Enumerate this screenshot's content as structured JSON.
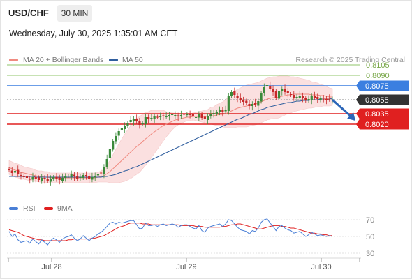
{
  "header": {
    "symbol": "USD/CHF",
    "timeframe": "30 MIN",
    "datetime": "Wednesday, July 30, 2025 1:35:01 AM CET"
  },
  "legend": {
    "ma20_label": "MA 20 + Bollinger Bands",
    "ma50_label": "MA 50",
    "credit": "Research © 2025 Trading Central",
    "rsi_label": "RSI",
    "rsi_ma_label": "9MA"
  },
  "colors": {
    "ma20": "#f08a80",
    "ma50": "#2f5e9e",
    "band_fill": "#fbe0e0",
    "bull": "#3b8a3b",
    "bear": "#c62828",
    "support": "#e02020",
    "resistance_light": "#8fc46a",
    "resistance_blue": "#3b7fe0",
    "arrow": "#2c66b8",
    "current_badge": "#333333",
    "rsi": "#4a7fd6",
    "rsi_ma": "#e02020"
  },
  "chart_data": [
    {
      "type": "candlestick",
      "title": "USD/CHF",
      "x_labels": [
        "Jul 28",
        "Jul 29",
        "Jul 30"
      ],
      "ylim": [
        0.7905,
        0.8115
      ],
      "levels": [
        {
          "value": 0.8105,
          "label": "0.8105",
          "kind": "resistance"
        },
        {
          "value": 0.809,
          "label": "0.8090",
          "kind": "resistance"
        },
        {
          "value": 0.8075,
          "label": "0.8075",
          "kind": "pivot"
        },
        {
          "value": 0.8055,
          "label": "0.8055",
          "kind": "current"
        },
        {
          "value": 0.8035,
          "label": "0.8035",
          "kind": "support"
        },
        {
          "value": 0.802,
          "label": "0.8020",
          "kind": "support"
        }
      ],
      "forecast_arrow": {
        "from": 0.8055,
        "to": 0.8025
      },
      "closes": [
        0.7954,
        0.795,
        0.7953,
        0.7948,
        0.7946,
        0.7944,
        0.7943,
        0.7941,
        0.7944,
        0.7942,
        0.794,
        0.7943,
        0.7941,
        0.7939,
        0.7942,
        0.7944,
        0.7942,
        0.794,
        0.7943,
        0.7945,
        0.7946,
        0.7948,
        0.7945,
        0.7942,
        0.7944,
        0.7947,
        0.7945,
        0.7942,
        0.7944,
        0.7946,
        0.7949,
        0.795,
        0.7959,
        0.797,
        0.7985,
        0.7996,
        0.8003,
        0.801,
        0.8014,
        0.8018,
        0.8022,
        0.8026,
        0.8028,
        0.8024,
        0.8019,
        0.8021,
        0.803,
        0.8027,
        0.8029,
        0.8031,
        0.803,
        0.8031,
        0.8032,
        0.8031,
        0.8033,
        0.8034,
        0.8033,
        0.8031,
        0.8033,
        0.8034,
        0.8034,
        0.8033,
        0.8031,
        0.803,
        0.8034,
        0.8029,
        0.8027,
        0.8032,
        0.8034,
        0.8036,
        0.8038,
        0.804,
        0.8037,
        0.804,
        0.806,
        0.8066,
        0.8062,
        0.8058,
        0.8054,
        0.8052,
        0.805,
        0.8046,
        0.8049,
        0.8048,
        0.8053,
        0.8064,
        0.8073,
        0.8076,
        0.8071,
        0.8066,
        0.8058,
        0.8068,
        0.807,
        0.8066,
        0.8064,
        0.8062,
        0.8058,
        0.8059,
        0.8061,
        0.8057,
        0.8054,
        0.8056,
        0.806,
        0.8058,
        0.8056,
        0.8057,
        0.8056,
        0.8055,
        0.8056,
        0.8055
      ],
      "series": [
        {
          "name": "MA 20",
          "values": [
            0.7958,
            0.7956,
            0.7954,
            0.7953,
            0.7951,
            0.795,
            0.7949,
            0.7948,
            0.7947,
            0.7946,
            0.7945,
            0.7945,
            0.7944,
            0.7944,
            0.7943,
            0.7943,
            0.7943,
            0.7943,
            0.7943,
            0.7943,
            0.7943,
            0.7943,
            0.7943,
            0.7943,
            0.7943,
            0.7943,
            0.7943,
            0.7943,
            0.7943,
            0.7943,
            0.7944,
            0.7945,
            0.7946,
            0.7949,
            0.7952,
            0.7956,
            0.796,
            0.7964,
            0.7968,
            0.7972,
            0.7976,
            0.798,
            0.7984,
            0.7988,
            0.7991,
            0.7995,
            0.7999,
            0.8002,
            0.8006,
            0.8009,
            0.8012,
            0.8015,
            0.8018,
            0.802,
            0.8022,
            0.8024,
            0.8026,
            0.8027,
            0.8028,
            0.8029,
            0.803,
            0.803,
            0.8031,
            0.8031,
            0.8031,
            0.8031,
            0.8031,
            0.8031,
            0.8032,
            0.8032,
            0.8033,
            0.8034,
            0.8034,
            0.8035,
            0.8037,
            0.8039,
            0.8041,
            0.8043,
            0.8044,
            0.8045,
            0.8046,
            0.8047,
            0.8048,
            0.8049,
            0.805,
            0.8052,
            0.8054,
            0.8056,
            0.8057,
            0.8058,
            0.8058,
            0.8059,
            0.806,
            0.8061,
            0.8062,
            0.8062,
            0.8063,
            0.8063,
            0.8063,
            0.8063,
            0.8063,
            0.8063,
            0.8062,
            0.8062,
            0.8062,
            0.8061,
            0.8061,
            0.806,
            0.8059,
            0.8059
          ]
        },
        {
          "name": "MA 50",
          "values": [
            0.7945,
            0.7945,
            0.7945,
            0.7945,
            0.7945,
            0.7945,
            0.7945,
            0.7945,
            0.7945,
            0.7944,
            0.7944,
            0.7944,
            0.7944,
            0.7944,
            0.7944,
            0.7944,
            0.7944,
            0.7944,
            0.7944,
            0.7944,
            0.7944,
            0.7944,
            0.7944,
            0.7944,
            0.7944,
            0.7944,
            0.7944,
            0.7944,
            0.7944,
            0.7944,
            0.7944,
            0.7944,
            0.7945,
            0.7945,
            0.7946,
            0.7947,
            0.7948,
            0.795,
            0.7951,
            0.7953,
            0.7954,
            0.7956,
            0.7958,
            0.7959,
            0.7961,
            0.7963,
            0.7965,
            0.7967,
            0.7969,
            0.7971,
            0.7973,
            0.7975,
            0.7977,
            0.7979,
            0.7981,
            0.7983,
            0.7985,
            0.7987,
            0.7989,
            0.7991,
            0.7993,
            0.7995,
            0.7997,
            0.7999,
            0.8001,
            0.8003,
            0.8005,
            0.8007,
            0.8009,
            0.8011,
            0.8013,
            0.8015,
            0.8017,
            0.8019,
            0.8021,
            0.8023,
            0.8025,
            0.8027,
            0.8028,
            0.803,
            0.8032,
            0.8034,
            0.8035,
            0.8037,
            0.8039,
            0.8041,
            0.8042,
            0.8044,
            0.8045,
            0.8046,
            0.8047,
            0.8048,
            0.8049,
            0.805,
            0.8051,
            0.8051,
            0.8052,
            0.8053,
            0.8053,
            0.8054,
            0.8054,
            0.8054,
            0.8055,
            0.8055,
            0.8055,
            0.8056,
            0.8056,
            0.8056,
            0.8056,
            0.8057
          ]
        }
      ],
      "bollinger_width": [
        0.001,
        0.001,
        0.001,
        0.001,
        0.001,
        0.0009,
        0.0009,
        0.0009,
        0.0009,
        0.0008,
        0.0008,
        0.0008,
        0.0008,
        0.0008,
        0.0007,
        0.0007,
        0.0007,
        0.0007,
        0.0007,
        0.0007,
        0.0007,
        0.0007,
        0.0007,
        0.0007,
        0.0007,
        0.0007,
        0.0007,
        0.0007,
        0.0007,
        0.0007,
        0.0007,
        0.0008,
        0.0009,
        0.0012,
        0.0016,
        0.002,
        0.0024,
        0.0028,
        0.0031,
        0.0034,
        0.0036,
        0.0038,
        0.0039,
        0.004,
        0.004,
        0.0039,
        0.0038,
        0.0036,
        0.0034,
        0.0031,
        0.0028,
        0.0025,
        0.0022,
        0.0018,
        0.0015,
        0.0012,
        0.001,
        0.0008,
        0.0007,
        0.0006,
        0.0005,
        0.0005,
        0.0005,
        0.0006,
        0.0007,
        0.0008,
        0.0009,
        0.001,
        0.0012,
        0.0013,
        0.0015,
        0.0016,
        0.0018,
        0.002,
        0.0022,
        0.0024,
        0.0026,
        0.0027,
        0.0028,
        0.0029,
        0.003,
        0.003,
        0.003,
        0.003,
        0.003,
        0.003,
        0.003,
        0.003,
        0.003,
        0.003,
        0.003,
        0.003,
        0.0029,
        0.0028,
        0.0027,
        0.0026,
        0.0025,
        0.0024,
        0.0023,
        0.0022,
        0.0021,
        0.002,
        0.0019,
        0.0018,
        0.0017,
        0.0016,
        0.0015,
        0.0014,
        0.0013,
        0.0012
      ]
    },
    {
      "type": "line",
      "title": "RSI",
      "ylim": [
        20,
        80
      ],
      "yticks": [
        70,
        50,
        30
      ],
      "series": [
        {
          "name": "RSI",
          "values": [
            56,
            50,
            53,
            46,
            43,
            44,
            45,
            42,
            47,
            44,
            41,
            46,
            43,
            40,
            45,
            48,
            46,
            43,
            47,
            49,
            50,
            52,
            48,
            45,
            47,
            51,
            48,
            45,
            48,
            50,
            53,
            55,
            58,
            62,
            66,
            67,
            65,
            67,
            66,
            67,
            68,
            69,
            69,
            64,
            59,
            60,
            66,
            63,
            63,
            64,
            62,
            64,
            65,
            63,
            64,
            65,
            64,
            61,
            63,
            64,
            64,
            62,
            60,
            59,
            63,
            57,
            55,
            60,
            62,
            63,
            64,
            65,
            62,
            65,
            70,
            69,
            65,
            61,
            58,
            57,
            56,
            53,
            57,
            56,
            60,
            67,
            70,
            71,
            66,
            62,
            57,
            62,
            63,
            60,
            58,
            57,
            54,
            55,
            56,
            53,
            50,
            52,
            55,
            53,
            51,
            52,
            51,
            50,
            51,
            50
          ]
        },
        {
          "name": "9MA",
          "values": [
            58,
            57,
            56,
            55,
            53,
            51,
            50,
            49,
            48,
            47,
            46,
            46,
            45,
            45,
            45,
            45,
            45,
            45,
            45,
            45,
            46,
            46,
            47,
            47,
            47,
            47,
            47,
            47,
            48,
            48,
            49,
            50,
            51,
            53,
            55,
            57,
            59,
            61,
            62,
            63,
            65,
            66,
            66,
            66,
            66,
            65,
            65,
            65,
            64,
            64,
            64,
            64,
            64,
            64,
            64,
            64,
            64,
            64,
            63,
            63,
            63,
            63,
            63,
            62,
            62,
            62,
            61,
            61,
            61,
            61,
            61,
            61,
            62,
            62,
            63,
            64,
            64,
            65,
            65,
            64,
            63,
            62,
            61,
            60,
            59,
            59,
            60,
            61,
            62,
            63,
            63,
            63,
            62,
            62,
            61,
            60,
            60,
            59,
            58,
            57,
            56,
            55,
            54,
            54,
            53,
            53,
            52,
            52,
            51,
            51
          ]
        }
      ]
    }
  ],
  "axis": {
    "price_labels": [
      "0.8105",
      "0.8090",
      "0.8075",
      "0.8055",
      "0.8035",
      "0.8020"
    ],
    "rsi_ticks": [
      "70",
      "50",
      "30"
    ],
    "x_labels": [
      "Jul 28",
      "Jul 29",
      "Jul 30"
    ]
  }
}
